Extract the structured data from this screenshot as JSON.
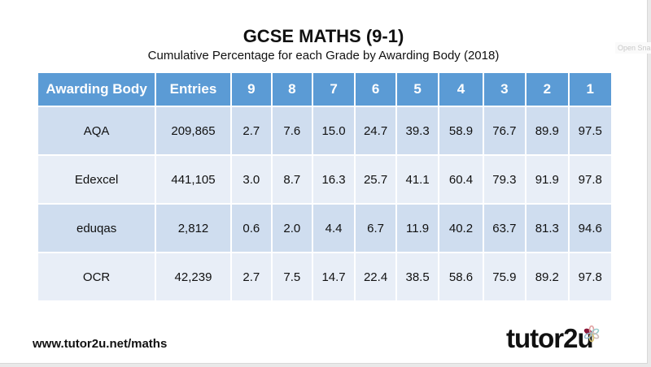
{
  "title": "GCSE MATHS (9-1)",
  "subtitle": "Cumulative Percentage for each Grade by Awarding Body (2018)",
  "overlay_label": "Open Snag",
  "table": {
    "headers": [
      "Awarding Body",
      "Entries",
      "9",
      "8",
      "7",
      "6",
      "5",
      "4",
      "3",
      "2",
      "1"
    ],
    "rows": [
      [
        "AQA",
        "209,865",
        "2.7",
        "7.6",
        "15.0",
        "24.7",
        "39.3",
        "58.9",
        "76.7",
        "89.9",
        "97.5"
      ],
      [
        "Edexcel",
        "441,105",
        "3.0",
        "8.7",
        "16.3",
        "25.7",
        "41.1",
        "60.4",
        "79.3",
        "91.9",
        "97.8"
      ],
      [
        "eduqas",
        "2,812",
        "0.6",
        "2.0",
        "4.4",
        "6.7",
        "11.9",
        "40.2",
        "63.7",
        "81.3",
        "94.6"
      ],
      [
        "OCR",
        "42,239",
        "2.7",
        "7.5",
        "14.7",
        "22.4",
        "38.5",
        "58.6",
        "75.9",
        "89.2",
        "97.8"
      ]
    ]
  },
  "footer": {
    "url": "www.tutor2u.net/maths",
    "logo": "tutor2u"
  },
  "colors": {
    "header": "#5b9bd5",
    "row_dark": "#cfddef",
    "row_light": "#e8eef7"
  }
}
